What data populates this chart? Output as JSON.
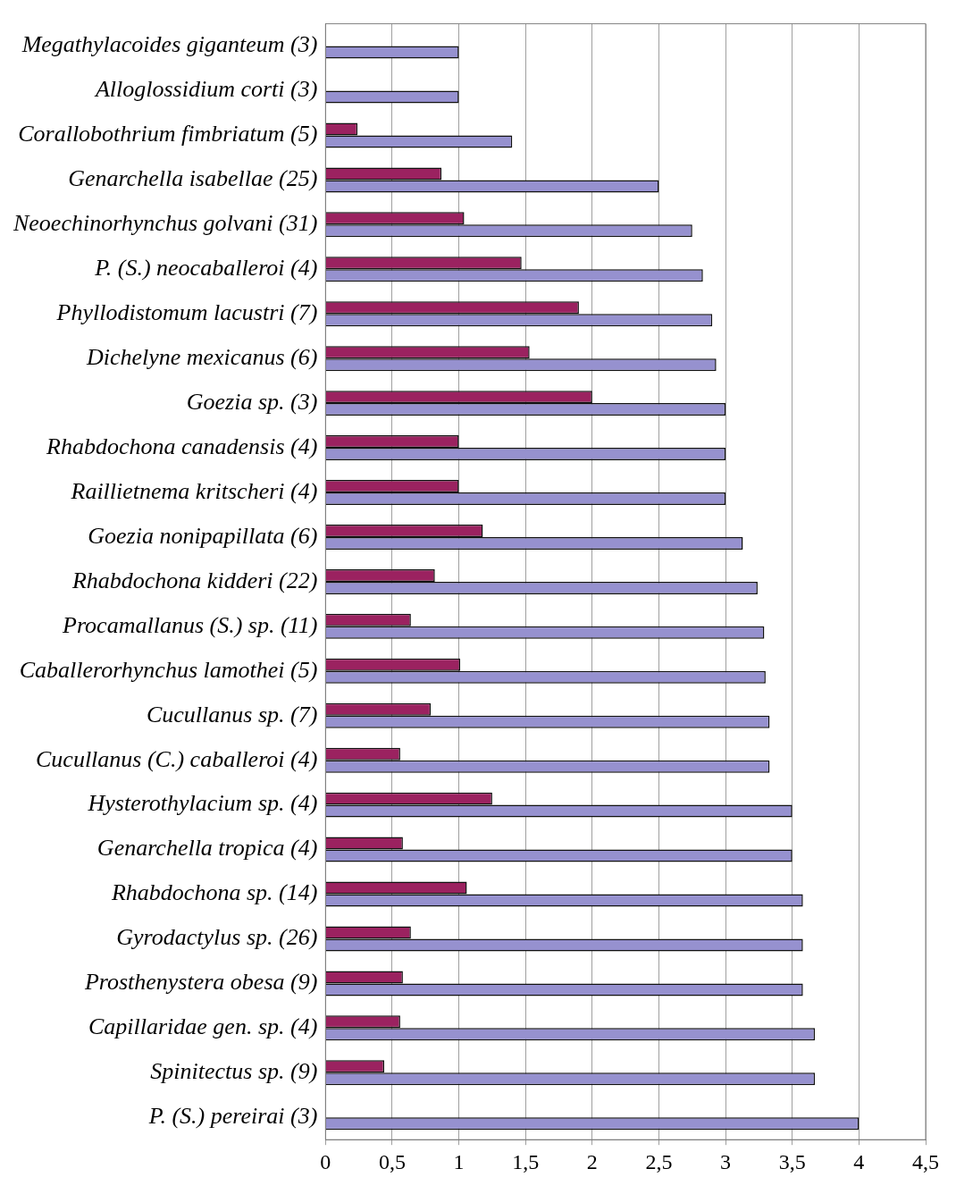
{
  "chart_data": {
    "type": "bar",
    "orientation": "horizontal",
    "categories": [
      "Megathylacoides giganteum (3)",
      "Alloglossidium corti (3)",
      "Corallobothrium fimbriatum (5)",
      "Genarchella isabellae (25)",
      "Neoechinorhynchus golvani (31)",
      "P. (S.) neocaballeroi (4)",
      "Phyllodistomum lacustri (7)",
      "Dichelyne mexicanus (6)",
      "Goezia sp. (3)",
      "Rhabdochona canadensis (4)",
      "Raillietnema kritscheri (4)",
      "Goezia nonipapillata (6)",
      "Rhabdochona kidderi (22)",
      "Procamallanus (S.) sp. (11)",
      "Caballerorhynchus lamothei (5)",
      "Cucullanus sp. (7)",
      "Cucullanus (C.) caballeroi (4)",
      "Hysterothylacium sp. (4)",
      "Genarchella tropica (4)",
      "Rhabdochona sp. (14)",
      "Gyrodactylus sp. (26)",
      "Prosthenystera obesa (9)",
      "Capillaridae gen. sp. (4)",
      "Spinitectus sp. (9)",
      "P. (S.) pereirai (3)"
    ],
    "series": [
      {
        "color": "#9b2260",
        "values": [
          null,
          null,
          0.24,
          0.87,
          1.04,
          1.47,
          1.9,
          1.53,
          2.0,
          1.0,
          1.0,
          1.18,
          0.82,
          0.64,
          1.01,
          0.79,
          0.56,
          1.25,
          0.58,
          1.06,
          0.64,
          0.58,
          0.56,
          0.44,
          null
        ]
      },
      {
        "color": "#9691cf",
        "values": [
          1.0,
          1.0,
          1.4,
          2.5,
          2.75,
          2.83,
          2.9,
          2.93,
          3.0,
          3.0,
          3.0,
          3.13,
          3.24,
          3.29,
          3.3,
          3.33,
          3.33,
          3.5,
          3.5,
          3.58,
          3.58,
          3.58,
          3.67,
          3.67,
          4.0
        ]
      }
    ],
    "xlim": [
      0,
      4.5
    ],
    "xticks": [
      0,
      {
        "value": 0.5,
        "label": "0,5"
      },
      1,
      {
        "value": 1.5,
        "label": "1,5"
      },
      2,
      {
        "value": 2.5,
        "label": "2,5"
      },
      3,
      {
        "value": 3.5,
        "label": "3,5"
      },
      4,
      {
        "value": 4.5,
        "label": "4,5"
      }
    ],
    "grid": "x",
    "legend": false
  }
}
